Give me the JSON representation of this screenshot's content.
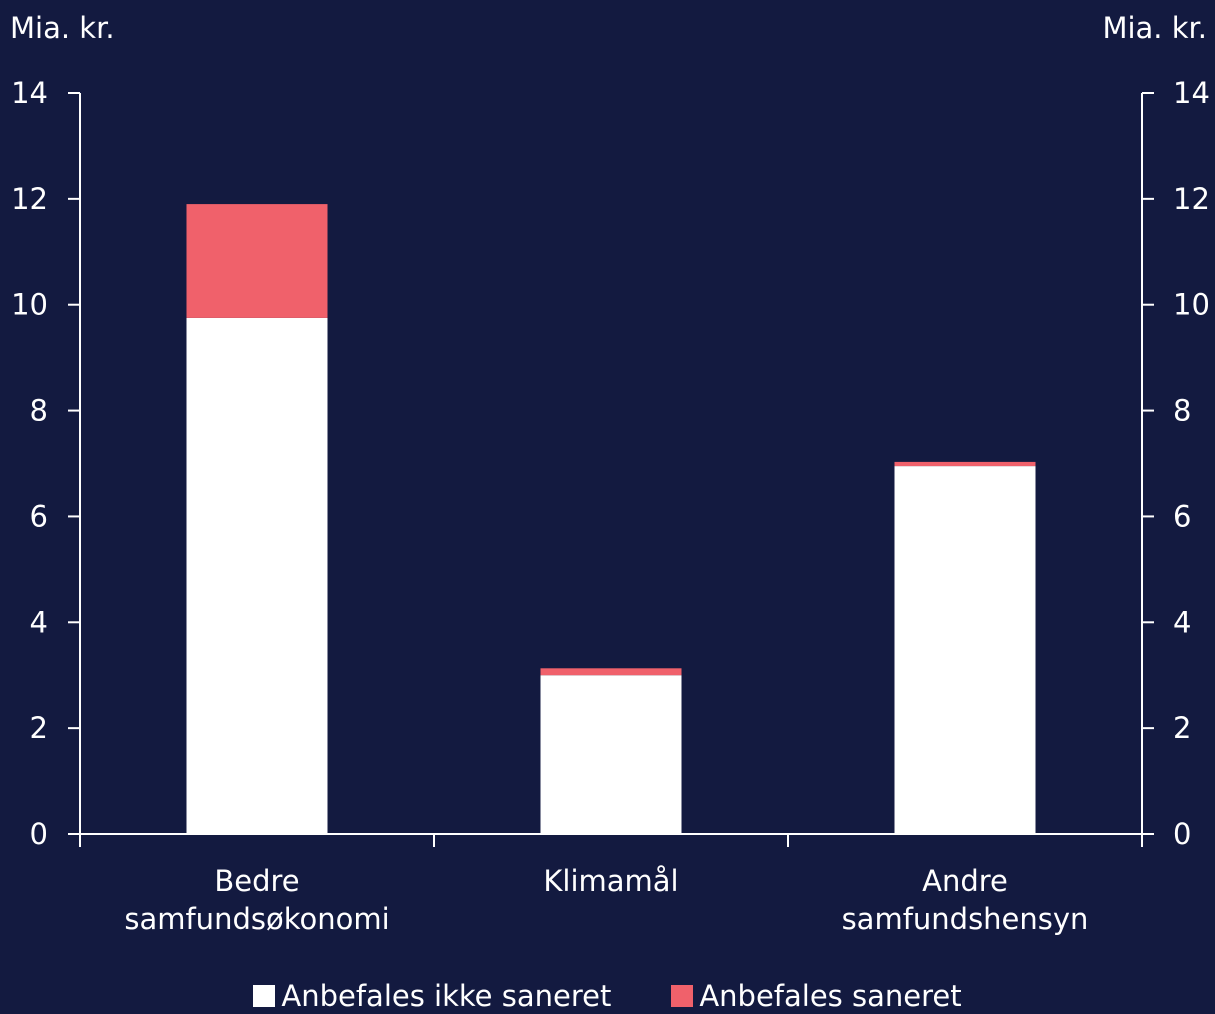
{
  "colors": {
    "background": "#131a40",
    "axis": "#ffffff",
    "text": "#ffffff"
  },
  "chart_data": {
    "type": "bar",
    "stacked": true,
    "categories": [
      "Bedre samfundsøkonomi",
      "Klimamål",
      "Andre samfundshensyn"
    ],
    "series": [
      {
        "name": "Anbefales ikke saneret",
        "color": "#ffffff",
        "values": [
          9.75,
          3.0,
          6.95
        ]
      },
      {
        "name": "Anbefales saneret",
        "color": "#f0616b",
        "values": [
          2.15,
          0.13,
          0.08
        ]
      }
    ],
    "ylim": [
      0,
      14
    ],
    "yticks": [
      "0",
      "2",
      "4",
      "6",
      "8",
      "10",
      "12",
      "14"
    ],
    "ylabel_left": "Mia. kr.",
    "ylabel_right": "Mia. kr.",
    "grid": false,
    "legend_position": "bottom"
  }
}
